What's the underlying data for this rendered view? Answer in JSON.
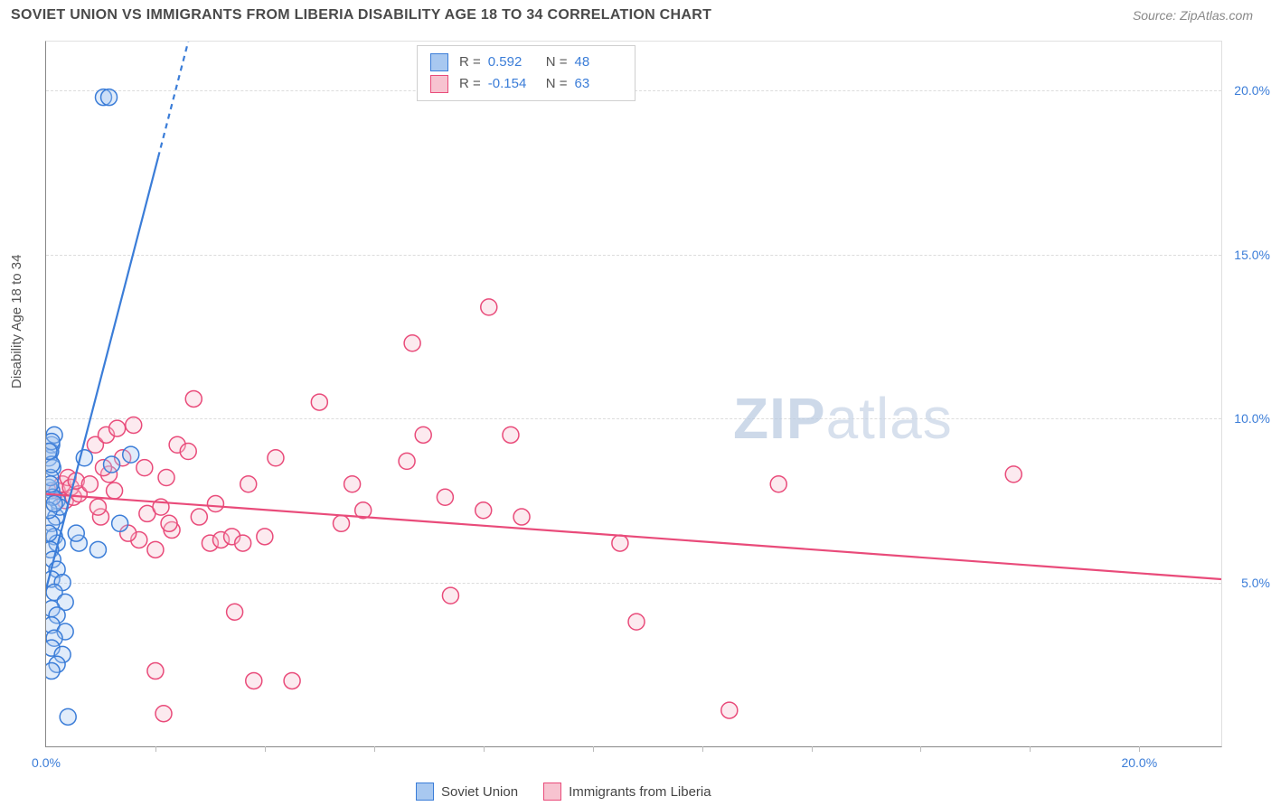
{
  "header": {
    "title": "SOVIET UNION VS IMMIGRANTS FROM LIBERIA DISABILITY AGE 18 TO 34 CORRELATION CHART",
    "source": "Source: ZipAtlas.com"
  },
  "watermark": {
    "part1": "ZIP",
    "part2": "atlas"
  },
  "chart": {
    "type": "scatter",
    "y_axis_label": "Disability Age 18 to 34",
    "xlim": [
      0,
      21.5
    ],
    "ylim": [
      0,
      21.5
    ],
    "x_origin_label": "0.0%",
    "x_max_label": "20.0%",
    "y_ticks": [
      {
        "v": 5,
        "label": "5.0%"
      },
      {
        "v": 10,
        "label": "10.0%"
      },
      {
        "v": 15,
        "label": "15.0%"
      },
      {
        "v": 20,
        "label": "20.0%"
      }
    ],
    "x_grid": [
      2,
      4,
      6,
      8,
      10,
      12,
      14,
      16,
      18,
      20
    ],
    "background_color": "#ffffff",
    "grid_color": "#dcdcdc",
    "axis_color": "#888888",
    "tick_label_color": "#3b7dd8",
    "marker_radius": 9,
    "marker_stroke_width": 1.5,
    "marker_fill_opacity": 0.35,
    "trendline_width": 2.2,
    "series": {
      "blue": {
        "label": "Soviet Union",
        "stroke": "#3b7dd8",
        "fill": "#a8c8f0",
        "stats": {
          "R_label": "R =",
          "R": "0.592",
          "N_label": "N =",
          "N": "48"
        },
        "trend": {
          "x1": 0.0,
          "y1": 4.8,
          "x2": 2.6,
          "y2": 21.5,
          "dash_from_x": 2.05
        },
        "points": [
          [
            0.05,
            8.8
          ],
          [
            0.1,
            9.2
          ],
          [
            0.08,
            9.0
          ],
          [
            0.12,
            8.5
          ],
          [
            0.15,
            9.5
          ],
          [
            0.1,
            7.8
          ],
          [
            0.2,
            7.5
          ],
          [
            0.18,
            7.0
          ],
          [
            0.25,
            7.3
          ],
          [
            0.1,
            6.8
          ],
          [
            0.15,
            6.4
          ],
          [
            0.2,
            6.2
          ],
          [
            0.08,
            6.0
          ],
          [
            0.12,
            5.7
          ],
          [
            0.2,
            5.4
          ],
          [
            0.1,
            5.1
          ],
          [
            0.3,
            5.0
          ],
          [
            0.15,
            4.7
          ],
          [
            0.35,
            4.4
          ],
          [
            0.1,
            4.2
          ],
          [
            0.2,
            4.0
          ],
          [
            0.1,
            3.7
          ],
          [
            0.35,
            3.5
          ],
          [
            0.15,
            3.3
          ],
          [
            0.1,
            3.0
          ],
          [
            0.3,
            2.8
          ],
          [
            0.2,
            2.5
          ],
          [
            0.1,
            2.3
          ],
          [
            0.05,
            7.9
          ],
          [
            0.08,
            8.2
          ],
          [
            0.12,
            7.6
          ],
          [
            0.05,
            7.2
          ],
          [
            0.1,
            8.6
          ],
          [
            0.08,
            8.0
          ],
          [
            0.15,
            7.4
          ],
          [
            0.05,
            6.5
          ],
          [
            0.1,
            9.3
          ],
          [
            0.4,
            0.9
          ],
          [
            0.6,
            6.2
          ],
          [
            0.55,
            6.5
          ],
          [
            0.7,
            8.8
          ],
          [
            0.95,
            6.0
          ],
          [
            1.2,
            8.6
          ],
          [
            1.35,
            6.8
          ],
          [
            1.05,
            19.8
          ],
          [
            1.15,
            19.8
          ],
          [
            1.55,
            8.9
          ],
          [
            0.05,
            9.0
          ]
        ]
      },
      "pink": {
        "label": "Immigrants from Liberia",
        "stroke": "#e94b7a",
        "fill": "#f7c3d0",
        "stats": {
          "R_label": "R =",
          "R": "-0.154",
          "N_label": "N =",
          "N": "63"
        },
        "trend": {
          "x1": 0.0,
          "y1": 7.7,
          "x2": 21.5,
          "y2": 5.1
        },
        "points": [
          [
            0.2,
            7.8
          ],
          [
            0.3,
            8.0
          ],
          [
            0.4,
            8.2
          ],
          [
            0.35,
            7.5
          ],
          [
            0.5,
            7.6
          ],
          [
            0.45,
            7.9
          ],
          [
            0.6,
            7.7
          ],
          [
            0.55,
            8.1
          ],
          [
            0.9,
            9.2
          ],
          [
            0.8,
            8.0
          ],
          [
            1.0,
            7.0
          ],
          [
            1.1,
            9.5
          ],
          [
            1.15,
            8.3
          ],
          [
            1.3,
            9.7
          ],
          [
            1.4,
            8.8
          ],
          [
            1.6,
            9.8
          ],
          [
            1.7,
            6.3
          ],
          [
            1.85,
            7.1
          ],
          [
            2.0,
            6.0
          ],
          [
            2.1,
            7.3
          ],
          [
            2.2,
            8.2
          ],
          [
            2.3,
            6.6
          ],
          [
            2.4,
            9.2
          ],
          [
            2.25,
            6.8
          ],
          [
            2.6,
            9.0
          ],
          [
            2.7,
            10.6
          ],
          [
            2.8,
            7.0
          ],
          [
            3.0,
            6.2
          ],
          [
            3.1,
            7.4
          ],
          [
            3.2,
            6.3
          ],
          [
            3.4,
            6.4
          ],
          [
            3.45,
            4.1
          ],
          [
            3.6,
            6.2
          ],
          [
            3.7,
            8.0
          ],
          [
            3.8,
            2.0
          ],
          [
            4.0,
            6.4
          ],
          [
            4.2,
            8.8
          ],
          [
            4.5,
            2.0
          ],
          [
            5.0,
            10.5
          ],
          [
            5.4,
            6.8
          ],
          [
            5.6,
            8.0
          ],
          [
            5.8,
            7.2
          ],
          [
            6.6,
            8.7
          ],
          [
            6.7,
            12.3
          ],
          [
            6.9,
            9.5
          ],
          [
            7.3,
            7.6
          ],
          [
            7.4,
            4.6
          ],
          [
            8.0,
            7.2
          ],
          [
            8.1,
            13.4
          ],
          [
            8.5,
            9.5
          ],
          [
            8.7,
            7.0
          ],
          [
            10.5,
            6.2
          ],
          [
            10.8,
            3.8
          ],
          [
            12.5,
            1.1
          ],
          [
            13.4,
            8.0
          ],
          [
            17.7,
            8.3
          ],
          [
            2.0,
            2.3
          ],
          [
            1.5,
            6.5
          ],
          [
            1.8,
            8.5
          ],
          [
            0.95,
            7.3
          ],
          [
            1.25,
            7.8
          ],
          [
            1.05,
            8.5
          ],
          [
            2.15,
            1.0
          ]
        ]
      }
    }
  },
  "legend": {
    "blue": "Soviet Union",
    "pink": "Immigrants from Liberia"
  }
}
